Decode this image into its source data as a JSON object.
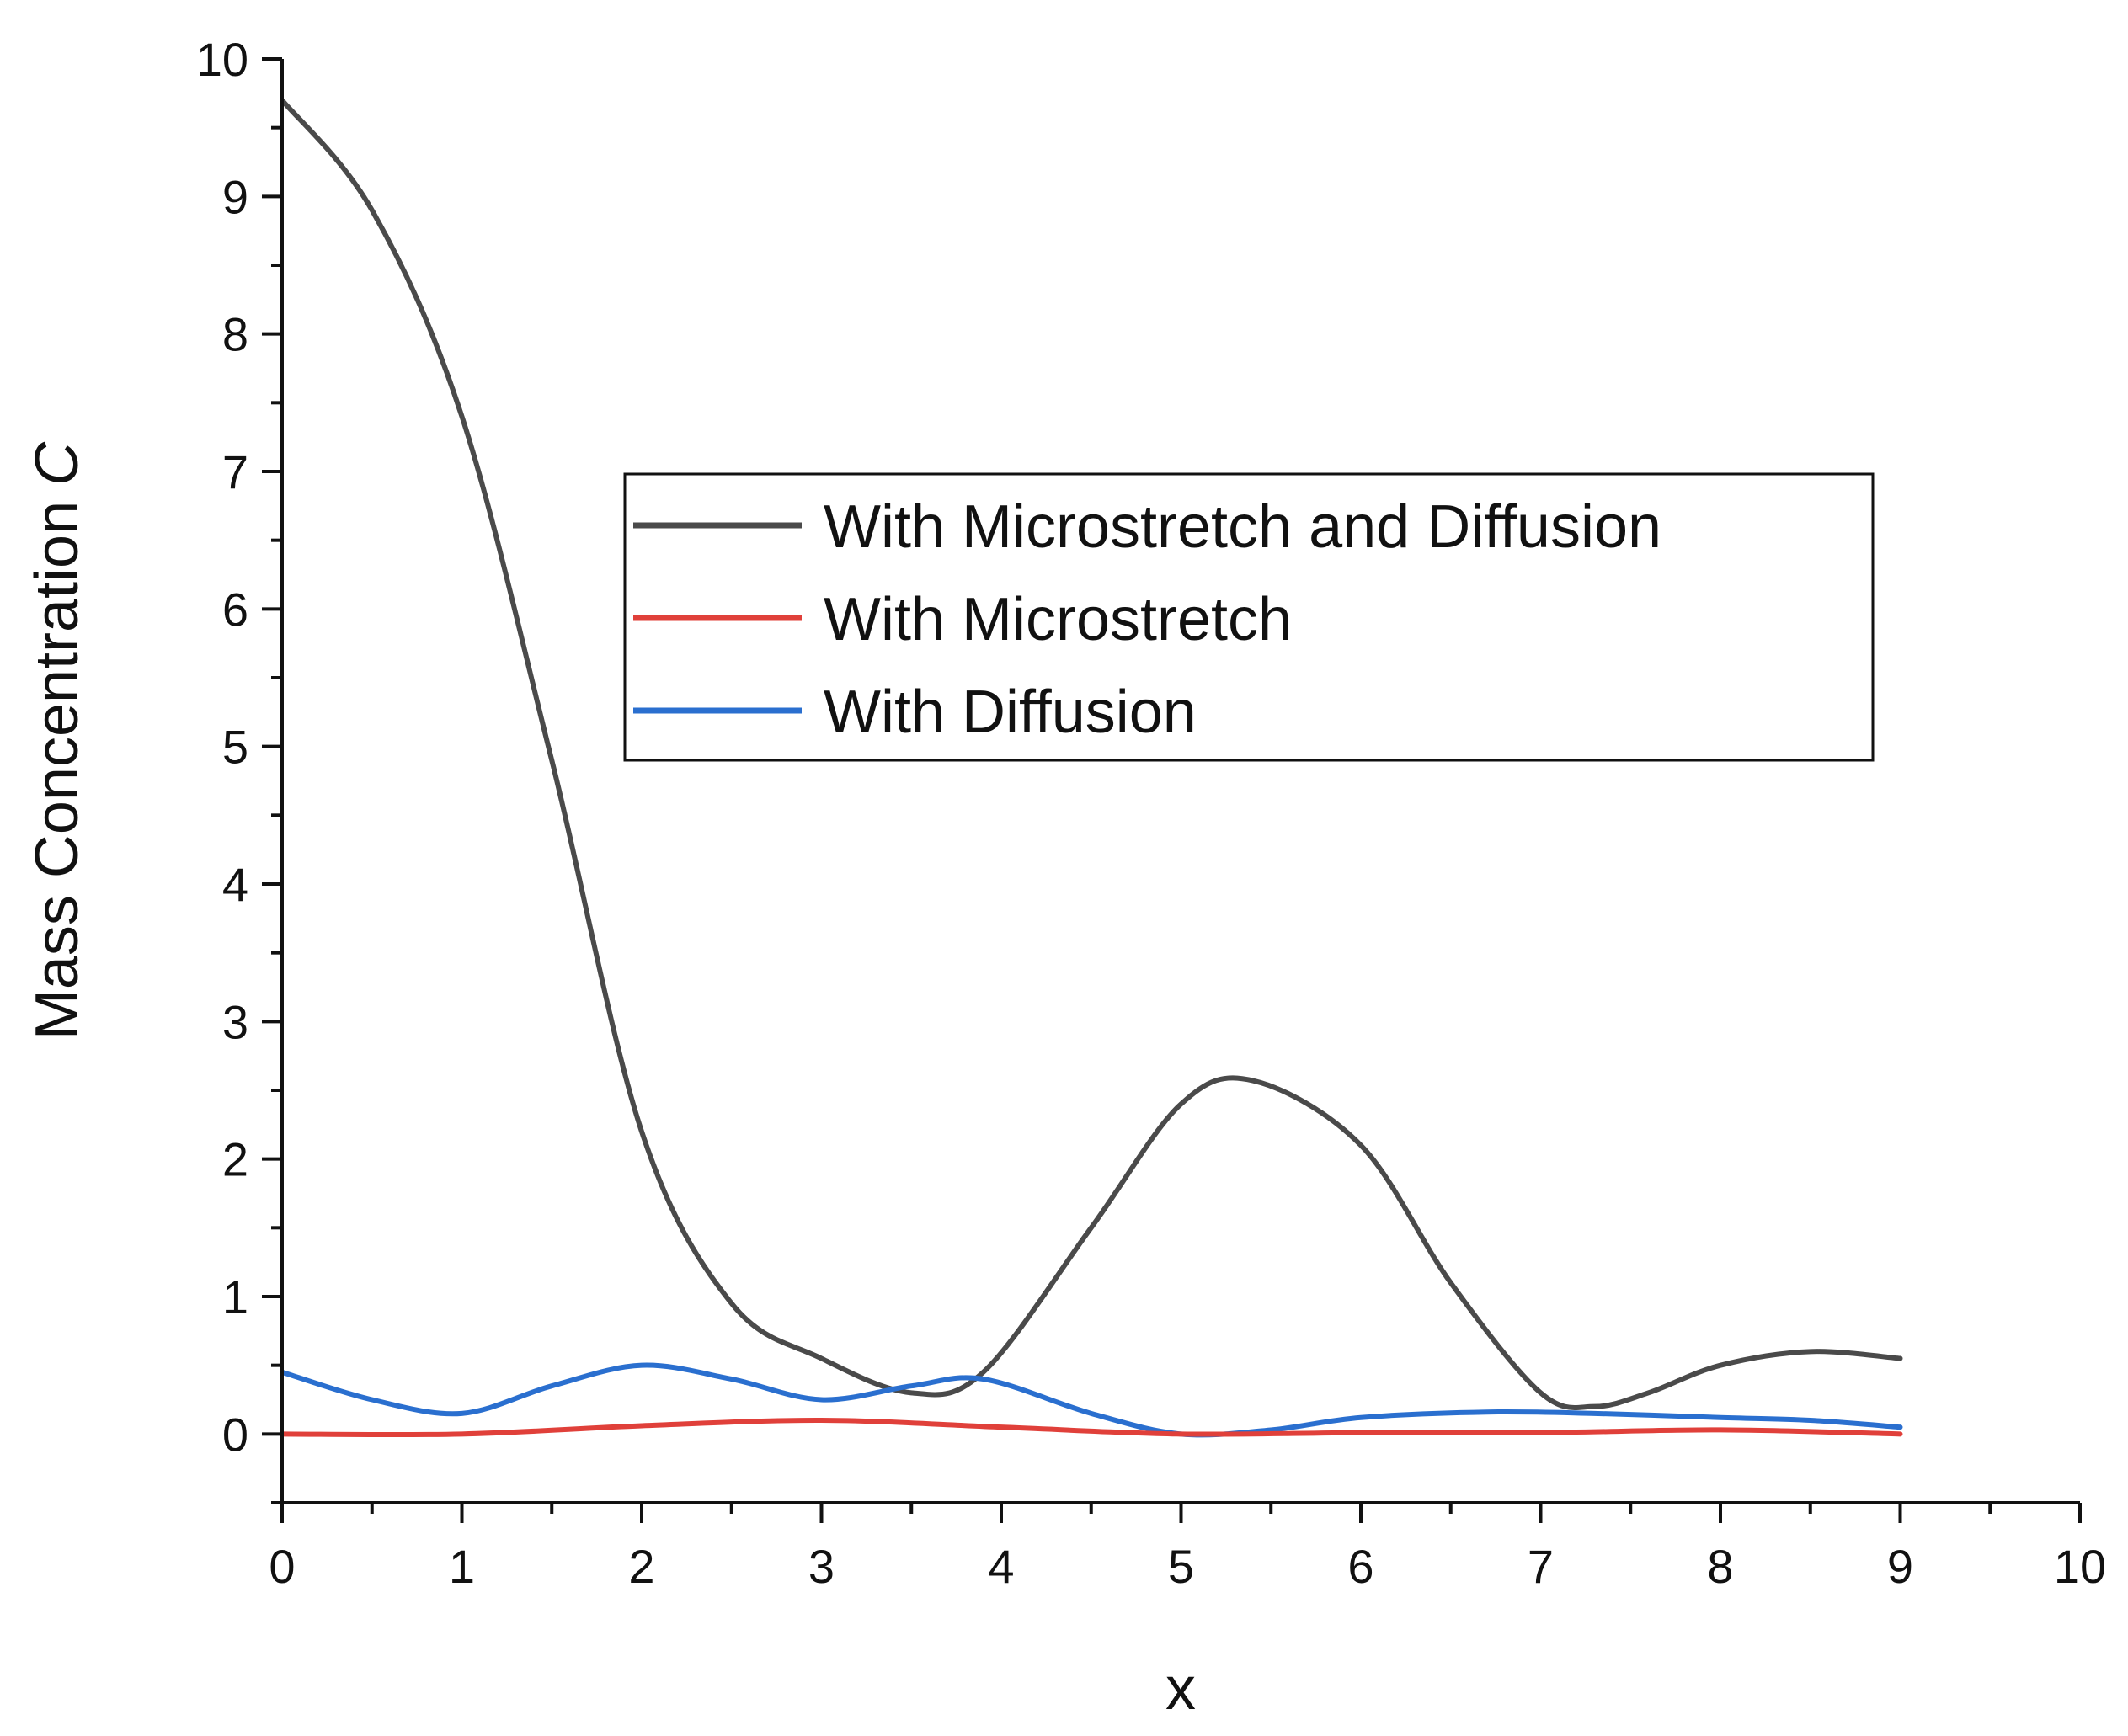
{
  "chart_data": {
    "type": "line",
    "title": "",
    "xlabel": "x",
    "ylabel": "Mass Concentration",
    "ylabel_symbol": "C",
    "xlim": [
      0,
      10
    ],
    "ylim": [
      -0.5,
      10
    ],
    "x_ticks": [
      0,
      1,
      2,
      3,
      4,
      5,
      6,
      7,
      8,
      9,
      10
    ],
    "y_ticks": [
      0,
      1,
      2,
      3,
      4,
      5,
      6,
      7,
      8,
      9,
      10
    ],
    "grid": false,
    "legend_position": "center-right",
    "series": [
      {
        "name": "With Microstretch and Diffusion",
        "color": "#4a4a4a",
        "x": [
          0,
          0.5,
          1,
          1.5,
          2,
          2.5,
          3,
          3.5,
          3.9,
          4.5,
          5,
          5.4,
          6,
          6.5,
          7,
          7.3,
          7.6,
          8,
          8.5,
          9
        ],
        "y": [
          9.7,
          8.9,
          7.4,
          4.9,
          2.2,
          0.95,
          0.55,
          0.3,
          0.45,
          1.5,
          2.4,
          2.57,
          2.1,
          1.1,
          0.3,
          0.2,
          0.3,
          0.5,
          0.6,
          0.55
        ]
      },
      {
        "name": "With Microstretch",
        "color": "#e0403a",
        "x": [
          0,
          1,
          2,
          3,
          4,
          5,
          6,
          7,
          8,
          9
        ],
        "y": [
          0,
          0,
          0.06,
          0.1,
          0.05,
          0,
          0.01,
          0.01,
          0.03,
          0
        ]
      },
      {
        "name": "With Diffusion",
        "color": "#2a6fcf",
        "x": [
          0,
          0.5,
          1,
          1.5,
          2,
          2.5,
          3,
          3.5,
          3.9,
          4.5,
          5,
          5.5,
          6,
          6.7,
          7.3,
          8,
          8.5,
          9
        ],
        "y": [
          0.45,
          0.25,
          0.15,
          0.35,
          0.5,
          0.4,
          0.25,
          0.35,
          0.4,
          0.15,
          0,
          0.03,
          0.12,
          0.16,
          0.15,
          0.12,
          0.1,
          0.05
        ]
      }
    ]
  }
}
